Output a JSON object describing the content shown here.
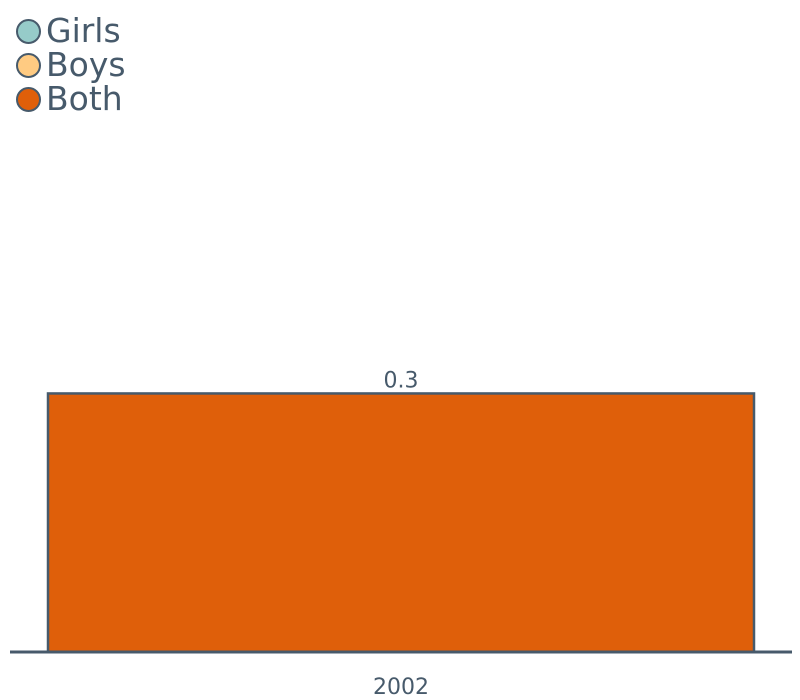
{
  "chart_data": {
    "type": "bar",
    "categories": [
      "2002"
    ],
    "series": [
      {
        "name": "Girls",
        "values": [
          null
        ],
        "color": "#96cbc9"
      },
      {
        "name": "Boys",
        "values": [
          null
        ],
        "color": "#ffcb82"
      },
      {
        "name": "Both",
        "values": [
          0.3
        ],
        "color": "#df5f0a"
      }
    ],
    "data_labels": [
      "0.3"
    ],
    "title": "",
    "xlabel": "",
    "ylabel": "",
    "ylim": [
      0,
      0.55
    ],
    "grid": false,
    "legend_position": "top-left",
    "axis_color": "#475a6b"
  }
}
